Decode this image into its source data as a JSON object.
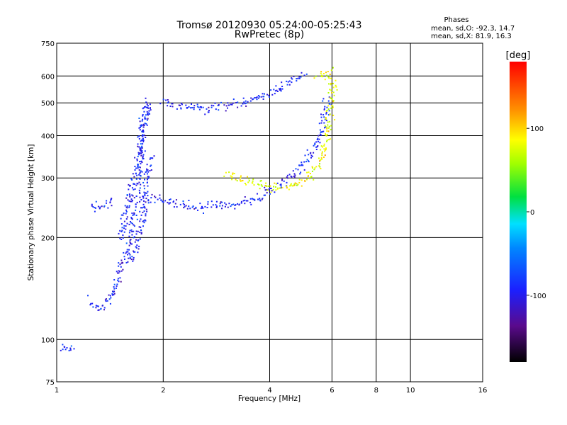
{
  "chart_data": {
    "type": "scatter",
    "title": "Tromsø 20120930 05:24:00-05:25:43",
    "subtitle": "RwPretec (8p)",
    "xlabel": "Frequency [MHz]",
    "ylabel": "Stationary phase Virtual Height [km]",
    "x_scale": "log",
    "y_scale": "log",
    "xlim": [
      1,
      16
    ],
    "ylim": [
      75,
      750
    ],
    "x_ticks": [
      1,
      2,
      4,
      6,
      8,
      10,
      16
    ],
    "x_tick_labels": [
      "1",
      "2",
      "4",
      "6",
      "8",
      "10",
      "16"
    ],
    "y_ticks": [
      75,
      100,
      200,
      300,
      400,
      500,
      600,
      750
    ],
    "y_tick_labels": [
      "75",
      "100",
      "200",
      "300",
      "400",
      "500",
      "600",
      "750"
    ],
    "grid": true,
    "phase_stats": {
      "header": "Phases",
      "line_o": "mean, sd,O: -92.3, 14.7",
      "line_x": "mean, sd,X:  81.9, 16.3"
    },
    "colorbar": {
      "label": "[deg]",
      "range": [
        -180,
        180
      ],
      "ticks": [
        100,
        0,
        -100
      ],
      "tick_labels": [
        "100",
        "0",
        "-100"
      ]
    },
    "series": [
      {
        "mode": "O",
        "phase_mean": -92.3,
        "phase_sd": 14.7,
        "traces": [
          {
            "x": [
              1.02,
              1.06,
              1.09,
              1.11
            ],
            "y": [
              95,
              95,
              94,
              96
            ]
          },
          {
            "x": [
              1.24,
              1.28,
              1.32,
              1.38,
              1.44,
              1.5,
              1.56,
              1.62,
              1.68,
              1.72,
              1.76,
              1.8
            ],
            "y": [
              130,
              125,
              124,
              128,
              140,
              160,
              180,
              200,
              260,
              340,
              440,
              520
            ]
          },
          {
            "x": [
              1.5,
              1.55,
              1.6,
              1.65,
              1.7,
              1.75,
              1.8
            ],
            "y": [
              200,
              230,
              270,
              300,
              360,
              430,
              500
            ]
          },
          {
            "x": [
              1.6,
              1.65,
              1.7,
              1.75,
              1.8,
              1.85
            ],
            "y": [
              170,
              180,
              200,
              240,
              300,
              350
            ]
          },
          {
            "x": [
              1.8,
              1.9,
              2.0,
              2.1,
              2.3,
              2.6,
              3.0,
              3.4,
              3.8,
              4.2,
              4.6,
              5.0,
              5.3,
              5.6,
              5.8
            ],
            "y": [
              270,
              262,
              258,
              255,
              250,
              248,
              250,
              256,
              266,
              285,
              305,
              330,
              360,
              420,
              520
            ]
          },
          {
            "x": [
              2.0,
              2.1,
              2.2,
              2.4,
              2.7,
              3.0,
              3.4,
              3.8,
              4.2,
              4.6,
              5.0
            ],
            "y": [
              505,
              500,
              495,
              488,
              485,
              492,
              505,
              525,
              550,
              580,
              615
            ]
          },
          {
            "x": [
              1.25,
              1.3,
              1.35,
              1.4,
              1.45
            ],
            "y": [
              245,
              248,
              250,
              255,
              260
            ]
          }
        ]
      },
      {
        "mode": "X",
        "phase_mean": 81.9,
        "phase_sd": 16.3,
        "traces": [
          {
            "x": [
              3.0,
              3.3,
              3.6,
              4.0,
              4.4,
              4.8,
              5.2,
              5.5,
              5.7,
              5.9,
              6.0
            ],
            "y": [
              310,
              300,
              290,
              282,
              283,
              290,
              305,
              330,
              370,
              440,
              600
            ]
          },
          {
            "x": [
              5.4,
              5.6,
              5.8,
              6.0
            ],
            "y": [
              600,
              605,
              615,
              630
            ]
          }
        ]
      }
    ]
  }
}
